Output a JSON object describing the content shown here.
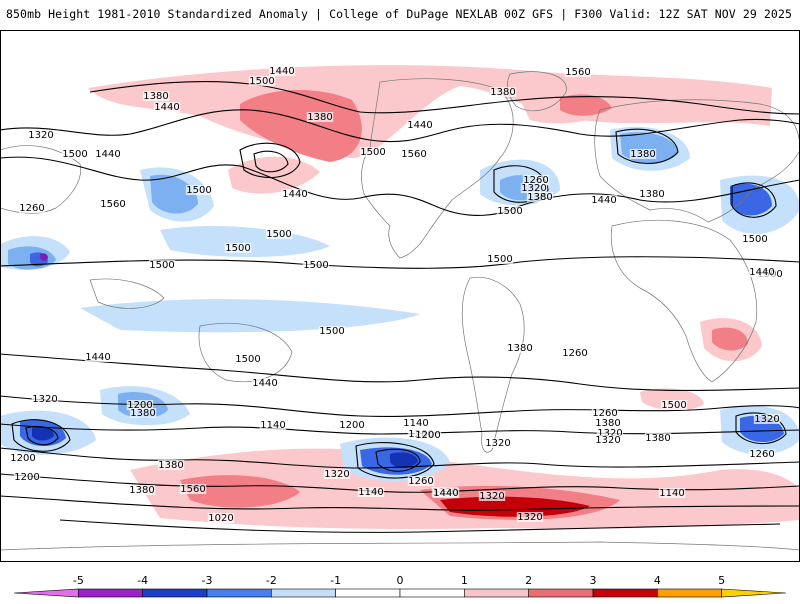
{
  "header": {
    "title_left": "850mb Height 1981-2010 Standardized Anomaly | College of DuPage NEXLAB",
    "title_right": "00Z GFS | F300 Valid: 12Z SAT NOV 29 2025"
  },
  "map": {
    "projection": "global cylindrical equidistant",
    "contour_labels": [
      "1440",
      "1500",
      "1560",
      "1380",
      "1380",
      "1440",
      "1440",
      "1320",
      "1500",
      "1440",
      "1380",
      "1560",
      "1500",
      "1380",
      "1260",
      "1500",
      "1440",
      "1320",
      "1380",
      "1380",
      "1440",
      "1260",
      "1560",
      "1500",
      "1500",
      "1500",
      "1500",
      "1500",
      "1500",
      "1500",
      "1500",
      "1440",
      "1500",
      "1500",
      "1380",
      "1260",
      "1440",
      "1320",
      "1260",
      "1380",
      "1200",
      "1320",
      "1380",
      "1140",
      "1200",
      "1140",
      "1260",
      "1320",
      "1200",
      "1380",
      "1320",
      "1200",
      "1380",
      "1260",
      "1020",
      "1140",
      "1260",
      "1320",
      "1320",
      "1320",
      "1380",
      "1560",
      "1200",
      "1140",
      "1320",
      "1440",
      "1500",
      "1440",
      "1320"
    ],
    "anomaly_colors": {
      "pos1": "#fbc8cc",
      "pos2": "#f27e86",
      "pos3": "#e44147",
      "pos4": "#c4000a",
      "neg1": "#c4e0fb",
      "neg2": "#7cb0f0",
      "neg3": "#3a68e4",
      "neg4": "#1433b4",
      "neg5": "#7b1fb0"
    }
  },
  "colorbar": {
    "ticks": [
      "-5",
      "-4",
      "-3",
      "-2",
      "-1",
      "0",
      "1",
      "2",
      "3",
      "4",
      "5"
    ],
    "colors": [
      "#e070e8",
      "#9a22c8",
      "#1c3ec8",
      "#4a7ef0",
      "#c6ddf9",
      "#ffffff",
      "#ffffff",
      "#f7c6ca",
      "#ea6d72",
      "#c9000c",
      "#ffa000",
      "#ffd000"
    ]
  }
}
